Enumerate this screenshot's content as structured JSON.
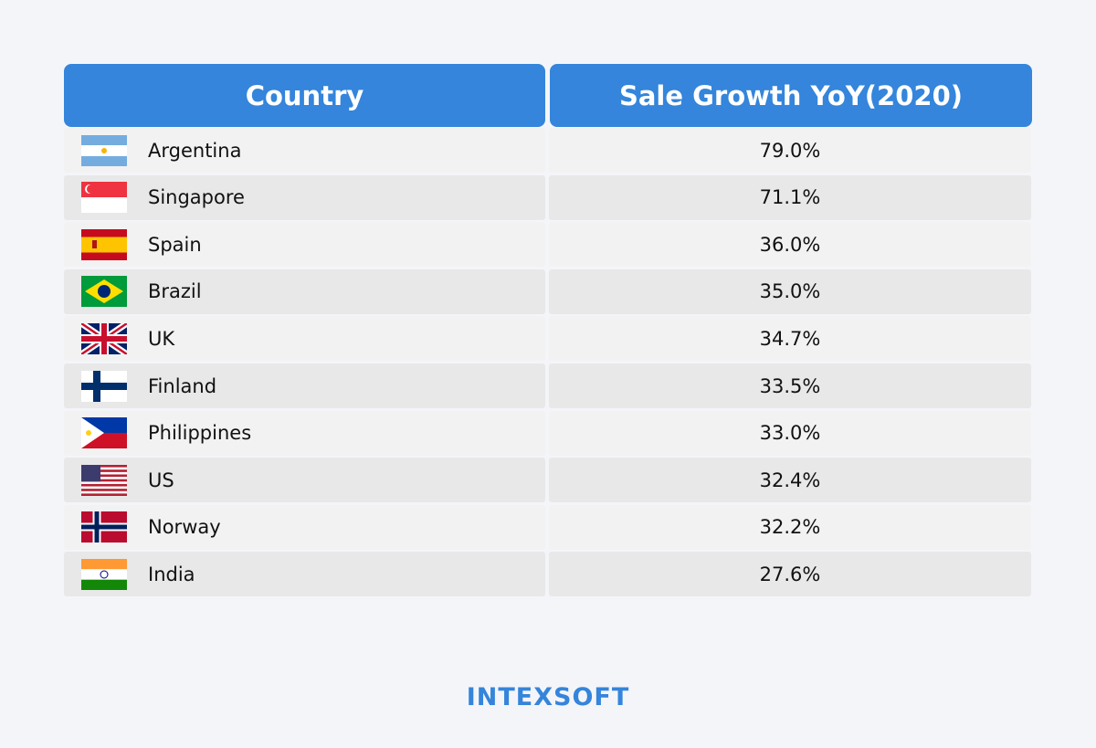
{
  "header": {
    "country": "Country",
    "growth": "Sale Growth YoY(2020)"
  },
  "rows": [
    {
      "country": "Argentina",
      "flag": "argentina",
      "value": "79.0%"
    },
    {
      "country": "Singapore",
      "flag": "singapore",
      "value": "71.1%"
    },
    {
      "country": "Spain",
      "flag": "spain",
      "value": "36.0%"
    },
    {
      "country": "Brazil",
      "flag": "brazil",
      "value": "35.0%"
    },
    {
      "country": "UK",
      "flag": "uk",
      "value": "34.7%"
    },
    {
      "country": "Finland",
      "flag": "finland",
      "value": "33.5%"
    },
    {
      "country": "Philippines",
      "flag": "philippines",
      "value": "33.0%"
    },
    {
      "country": "US",
      "flag": "us",
      "value": "32.4%"
    },
    {
      "country": "Norway",
      "flag": "norway",
      "value": "32.2%"
    },
    {
      "country": "India",
      "flag": "india",
      "value": "27.6%"
    }
  ],
  "logo": "INTEXSOFT",
  "colors": {
    "header": "#3485db",
    "row_light": "#f2f2f3",
    "row_dark": "#e8e8e9"
  }
}
